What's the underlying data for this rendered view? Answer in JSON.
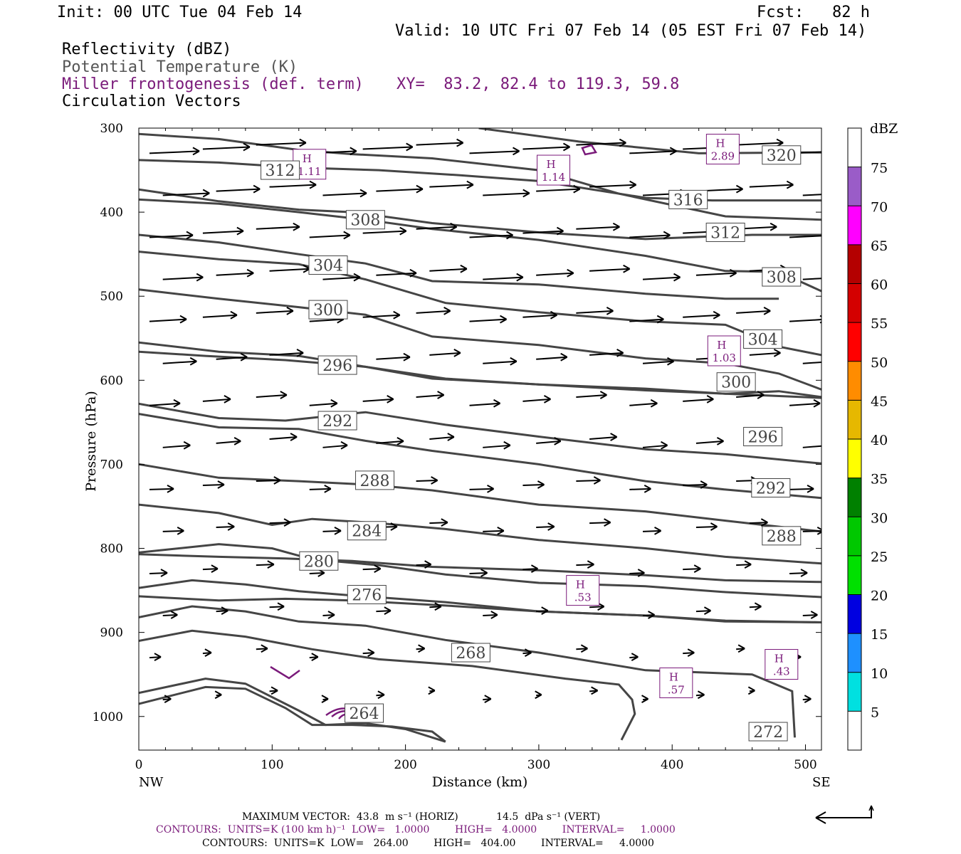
{
  "header": {
    "init": "Init: 00 UTC Tue 04 Feb 14",
    "fcst": "Fcst:   82 h",
    "valid": "Valid: 10 UTC Fri 07 Feb 14 (05 EST Fri 07 Feb 14)",
    "fields": [
      {
        "label": "Reflectivity (dBZ)",
        "color": "#000000"
      },
      {
        "label": "Potential Temperature (K)",
        "color": "#555555"
      },
      {
        "label": "Miller frontogenesis (def. term)",
        "color": "#7a1a7a"
      },
      {
        "label": "Circulation Vectors",
        "color": "#000000"
      }
    ],
    "xy": "XY=  83.2, 82.4 to 119.3, 59.8"
  },
  "chart_data": {
    "type": "line",
    "xlabel": "Distance (km)",
    "ylabel": "Pressure (hPa)",
    "xlim": [
      0,
      512
    ],
    "ylim": [
      1040,
      300
    ],
    "x_ticks": [
      0,
      100,
      200,
      300,
      400,
      500
    ],
    "y_ticks": [
      300,
      400,
      500,
      600,
      700,
      800,
      900,
      1000
    ],
    "x_end_labels": {
      "left": "NW",
      "right": "SE"
    },
    "theta_contours": [
      {
        "label": "320",
        "label_at": [
          482,
          332
        ],
        "points": [
          [
            255,
            300
          ],
          [
            330,
            316
          ],
          [
            420,
            330
          ],
          [
            500,
            329
          ],
          [
            512,
            329
          ]
        ]
      },
      {
        "label": "316",
        "label_at": [
          412,
          385
        ],
        "points": [
          [
            0,
            338
          ],
          [
            60,
            341
          ],
          [
            120,
            347
          ],
          [
            180,
            350
          ],
          [
            240,
            356
          ],
          [
            300,
            363
          ],
          [
            380,
            383
          ],
          [
            430,
            386
          ],
          [
            512,
            386
          ]
        ]
      },
      {
        "label": "312",
        "label_at": [
          106,
          350
        ],
        "points": [
          [
            0,
            307
          ],
          [
            60,
            313
          ],
          [
            120,
            326
          ],
          [
            160,
            331
          ],
          [
            220,
            336
          ],
          [
            300,
            350
          ],
          [
            360,
            378
          ],
          [
            440,
            405
          ],
          [
            512,
            409
          ]
        ]
      },
      {
        "label": "312",
        "label_at": [
          440,
          424
        ],
        "points": [
          [
            0,
            373
          ],
          [
            60,
            387
          ],
          [
            120,
            397
          ],
          [
            160,
            400
          ],
          [
            220,
            413
          ],
          [
            300,
            424
          ],
          [
            380,
            432
          ],
          [
            460,
            427
          ],
          [
            512,
            427
          ]
        ]
      },
      {
        "label": "308",
        "label_at": [
          170,
          409
        ],
        "points": [
          [
            0,
            385
          ],
          [
            60,
            390
          ],
          [
            120,
            400
          ],
          [
            170,
            409
          ],
          [
            220,
            420
          ],
          [
            300,
            433
          ],
          [
            380,
            452
          ],
          [
            440,
            470
          ],
          [
            480,
            471
          ],
          [
            512,
            494
          ]
        ]
      },
      {
        "label": "308",
        "label_at": [
          482,
          477
        ],
        "points": [
          [
            0,
            427
          ],
          [
            60,
            436
          ],
          [
            120,
            450
          ],
          [
            170,
            461
          ],
          [
            220,
            482
          ],
          [
            300,
            486
          ],
          [
            380,
            497
          ],
          [
            440,
            503
          ],
          [
            480,
            503
          ]
        ]
      },
      {
        "label": "304",
        "label_at": [
          142,
          463
        ],
        "points": [
          [
            0,
            447
          ],
          [
            60,
            456
          ],
          [
            120,
            462
          ],
          [
            170,
            480
          ],
          [
            230,
            508
          ],
          [
            300,
            519
          ],
          [
            380,
            530
          ],
          [
            440,
            534
          ],
          [
            480,
            560
          ],
          [
            512,
            570
          ]
        ]
      },
      {
        "label": "304",
        "label_at": [
          468,
          551
        ],
        "points": [
          [
            0,
            492
          ],
          [
            60,
            503
          ],
          [
            120,
            513
          ],
          [
            170,
            522
          ],
          [
            220,
            548
          ],
          [
            300,
            558
          ],
          [
            380,
            574
          ],
          [
            440,
            580
          ],
          [
            480,
            592
          ],
          [
            512,
            611
          ]
        ]
      },
      {
        "label": "300",
        "label_at": [
          142,
          516
        ],
        "points": [
          [
            0,
            555
          ],
          [
            60,
            566
          ],
          [
            120,
            571
          ],
          [
            170,
            584
          ],
          [
            220,
            598
          ],
          [
            300,
            605
          ],
          [
            380,
            612
          ],
          [
            440,
            616
          ],
          [
            480,
            613
          ],
          [
            512,
            620
          ]
        ]
      },
      {
        "label": "300",
        "label_at": [
          448,
          602
        ],
        "points": [
          [
            0,
            566
          ],
          [
            50,
            571
          ],
          [
            110,
            576
          ],
          [
            170,
            584
          ],
          [
            230,
            598
          ],
          [
            300,
            605
          ],
          [
            380,
            610
          ],
          [
            440,
            616
          ],
          [
            512,
            621
          ]
        ]
      },
      {
        "label": "296",
        "label_at": [
          149,
          582
        ],
        "points": [
          [
            0,
            628
          ],
          [
            60,
            645
          ],
          [
            110,
            648
          ],
          [
            170,
            638
          ],
          [
            230,
            653
          ],
          [
            300,
            667
          ],
          [
            380,
            682
          ],
          [
            440,
            688
          ],
          [
            512,
            699
          ]
        ]
      },
      {
        "label": "296",
        "label_at": [
          468,
          667
        ],
        "points": [
          [
            0,
            640
          ],
          [
            60,
            656
          ],
          [
            120,
            658
          ],
          [
            170,
            672
          ],
          [
            220,
            684
          ],
          [
            300,
            700
          ],
          [
            380,
            720
          ],
          [
            440,
            730
          ],
          [
            512,
            740
          ]
        ]
      },
      {
        "label": "292",
        "label_at": [
          149,
          648
        ],
        "points": [
          [
            0,
            700
          ],
          [
            60,
            716
          ],
          [
            120,
            720
          ],
          [
            170,
            724
          ],
          [
            220,
            731
          ],
          [
            300,
            748
          ],
          [
            380,
            756
          ],
          [
            440,
            767
          ],
          [
            512,
            780
          ]
        ]
      },
      {
        "label": "292",
        "label_at": [
          474,
          728
        ],
        "points": [
          [
            0,
            748
          ],
          [
            60,
            758
          ],
          [
            100,
            772
          ],
          [
            130,
            765
          ],
          [
            180,
            770
          ],
          [
            230,
            777
          ],
          [
            300,
            790
          ],
          [
            380,
            800
          ],
          [
            440,
            810
          ],
          [
            512,
            818
          ]
        ]
      },
      {
        "label": "288",
        "label_at": [
          177,
          719
        ],
        "points": [
          [
            0,
            807
          ],
          [
            60,
            810
          ],
          [
            110,
            812
          ],
          [
            160,
            815
          ],
          [
            220,
            822
          ],
          [
            300,
            826
          ],
          [
            380,
            832
          ],
          [
            440,
            838
          ],
          [
            512,
            840
          ]
        ]
      },
      {
        "label": "288",
        "label_at": [
          482,
          785
        ],
        "points": [
          [
            0,
            857
          ],
          [
            60,
            862
          ],
          [
            110,
            860
          ],
          [
            160,
            862
          ],
          [
            230,
            868
          ],
          [
            300,
            875
          ],
          [
            380,
            880
          ],
          [
            440,
            887
          ],
          [
            512,
            888
          ]
        ]
      },
      {
        "label": "284",
        "label_at": [
          171,
          779
        ],
        "points": [
          [
            0,
            805
          ],
          [
            60,
            795
          ],
          [
            100,
            800
          ],
          [
            130,
            813
          ],
          [
            180,
            820
          ],
          [
            230,
            831
          ],
          [
            300,
            841
          ],
          [
            380,
            845
          ],
          [
            440,
            852
          ],
          [
            512,
            858
          ]
        ]
      },
      {
        "label": "280",
        "label_at": [
          135,
          815
        ],
        "points": [
          [
            0,
            847
          ],
          [
            40,
            838
          ],
          [
            80,
            843
          ],
          [
            120,
            851
          ],
          [
            160,
            856
          ],
          [
            230,
            864
          ],
          [
            300,
            875
          ],
          [
            380,
            880
          ],
          [
            440,
            886
          ],
          [
            512,
            888
          ]
        ]
      },
      {
        "label": "276",
        "label_at": [
          171,
          855
        ],
        "points": [
          [
            0,
            882
          ],
          [
            40,
            869
          ],
          [
            80,
            875
          ],
          [
            120,
            887
          ],
          [
            170,
            892
          ],
          [
            230,
            909
          ],
          [
            300,
            924
          ],
          [
            380,
            945
          ],
          [
            460,
            950
          ],
          [
            490,
            970
          ],
          [
            492,
            1025
          ]
        ]
      },
      {
        "label": "268",
        "label_at": [
          249,
          924
        ],
        "points": [
          [
            0,
            910
          ],
          [
            40,
            898
          ],
          [
            80,
            905
          ],
          [
            130,
            920
          ],
          [
            180,
            932
          ],
          [
            250,
            940
          ],
          [
            320,
            955
          ],
          [
            360,
            962
          ],
          [
            370,
            980
          ],
          [
            372,
            997
          ],
          [
            362,
            1028
          ]
        ]
      },
      {
        "label": "264",
        "label_at": [
          169,
          996
        ],
        "points": [
          [
            0,
            972
          ],
          [
            50,
            955
          ],
          [
            80,
            961
          ],
          [
            120,
            993
          ],
          [
            140,
            1010
          ],
          [
            170,
            1008
          ],
          [
            200,
            1015
          ],
          [
            230,
            1030
          ]
        ]
      },
      {
        "label": "272",
        "label_at": [
          472,
          1018
        ],
        "points": [
          [
            0,
            985
          ],
          [
            50,
            965
          ],
          [
            80,
            967
          ],
          [
            110,
            990
          ],
          [
            130,
            1010
          ],
          [
            160,
            1010
          ],
          [
            190,
            1012
          ],
          [
            220,
            1018
          ],
          [
            230,
            1030
          ]
        ]
      }
    ],
    "frontogenesis_maxima": [
      {
        "label": "H",
        "value": "1.11",
        "at": [
          128,
          343
        ]
      },
      {
        "label": "H",
        "value": "1.14",
        "at": [
          311,
          350
        ]
      },
      {
        "label": "H",
        "value": "2.89",
        "at": [
          438,
          325
        ]
      },
      {
        "label": "H",
        "value": "1.03",
        "at": [
          439,
          565
        ]
      },
      {
        "label": "H",
        "value": ".53",
        "at": [
          333,
          850
        ]
      },
      {
        "label": "H",
        "value": ".57",
        "at": [
          403,
          960
        ]
      },
      {
        "label": "H",
        "value": ".43",
        "at": [
          482,
          938
        ]
      }
    ],
    "colorbar": {
      "title": "dBZ",
      "levels": [
        5,
        10,
        15,
        20,
        25,
        30,
        35,
        40,
        45,
        50,
        55,
        60,
        65,
        70,
        75
      ],
      "colors": [
        "#ffffff",
        "#00e0e0",
        "#1e90ff",
        "#0000e0",
        "#00e000",
        "#00c800",
        "#008000",
        "#ffff00",
        "#e6b800",
        "#ff8c00",
        "#ff0000",
        "#d40000",
        "#b40000",
        "#ff00ff",
        "#9a5cc8",
        "#ffffff"
      ]
    },
    "max_vector": {
      "label": "MAXIMUM VECTOR:",
      "horiz": "43.8 m s⁻¹ (HORIZ)",
      "vert": "14.5 dPa s⁻¹ (VERT)"
    }
  },
  "footer": {
    "max_vector_text": "MAXIMUM VECTOR:  43.8  m s⁻¹ (HORIZ)            14.5  dPa s⁻¹ (VERT)",
    "contours_frontogenesis": "CONTOURS:  UNITS=K (100 km h)⁻¹  LOW=   1.0000        HIGH=   4.0000        INTERVAL=     1.0000",
    "contours_theta": "CONTOURS:  UNITS=K  LOW=   264.00        HIGH=   404.00        INTERVAL=     4.0000"
  }
}
